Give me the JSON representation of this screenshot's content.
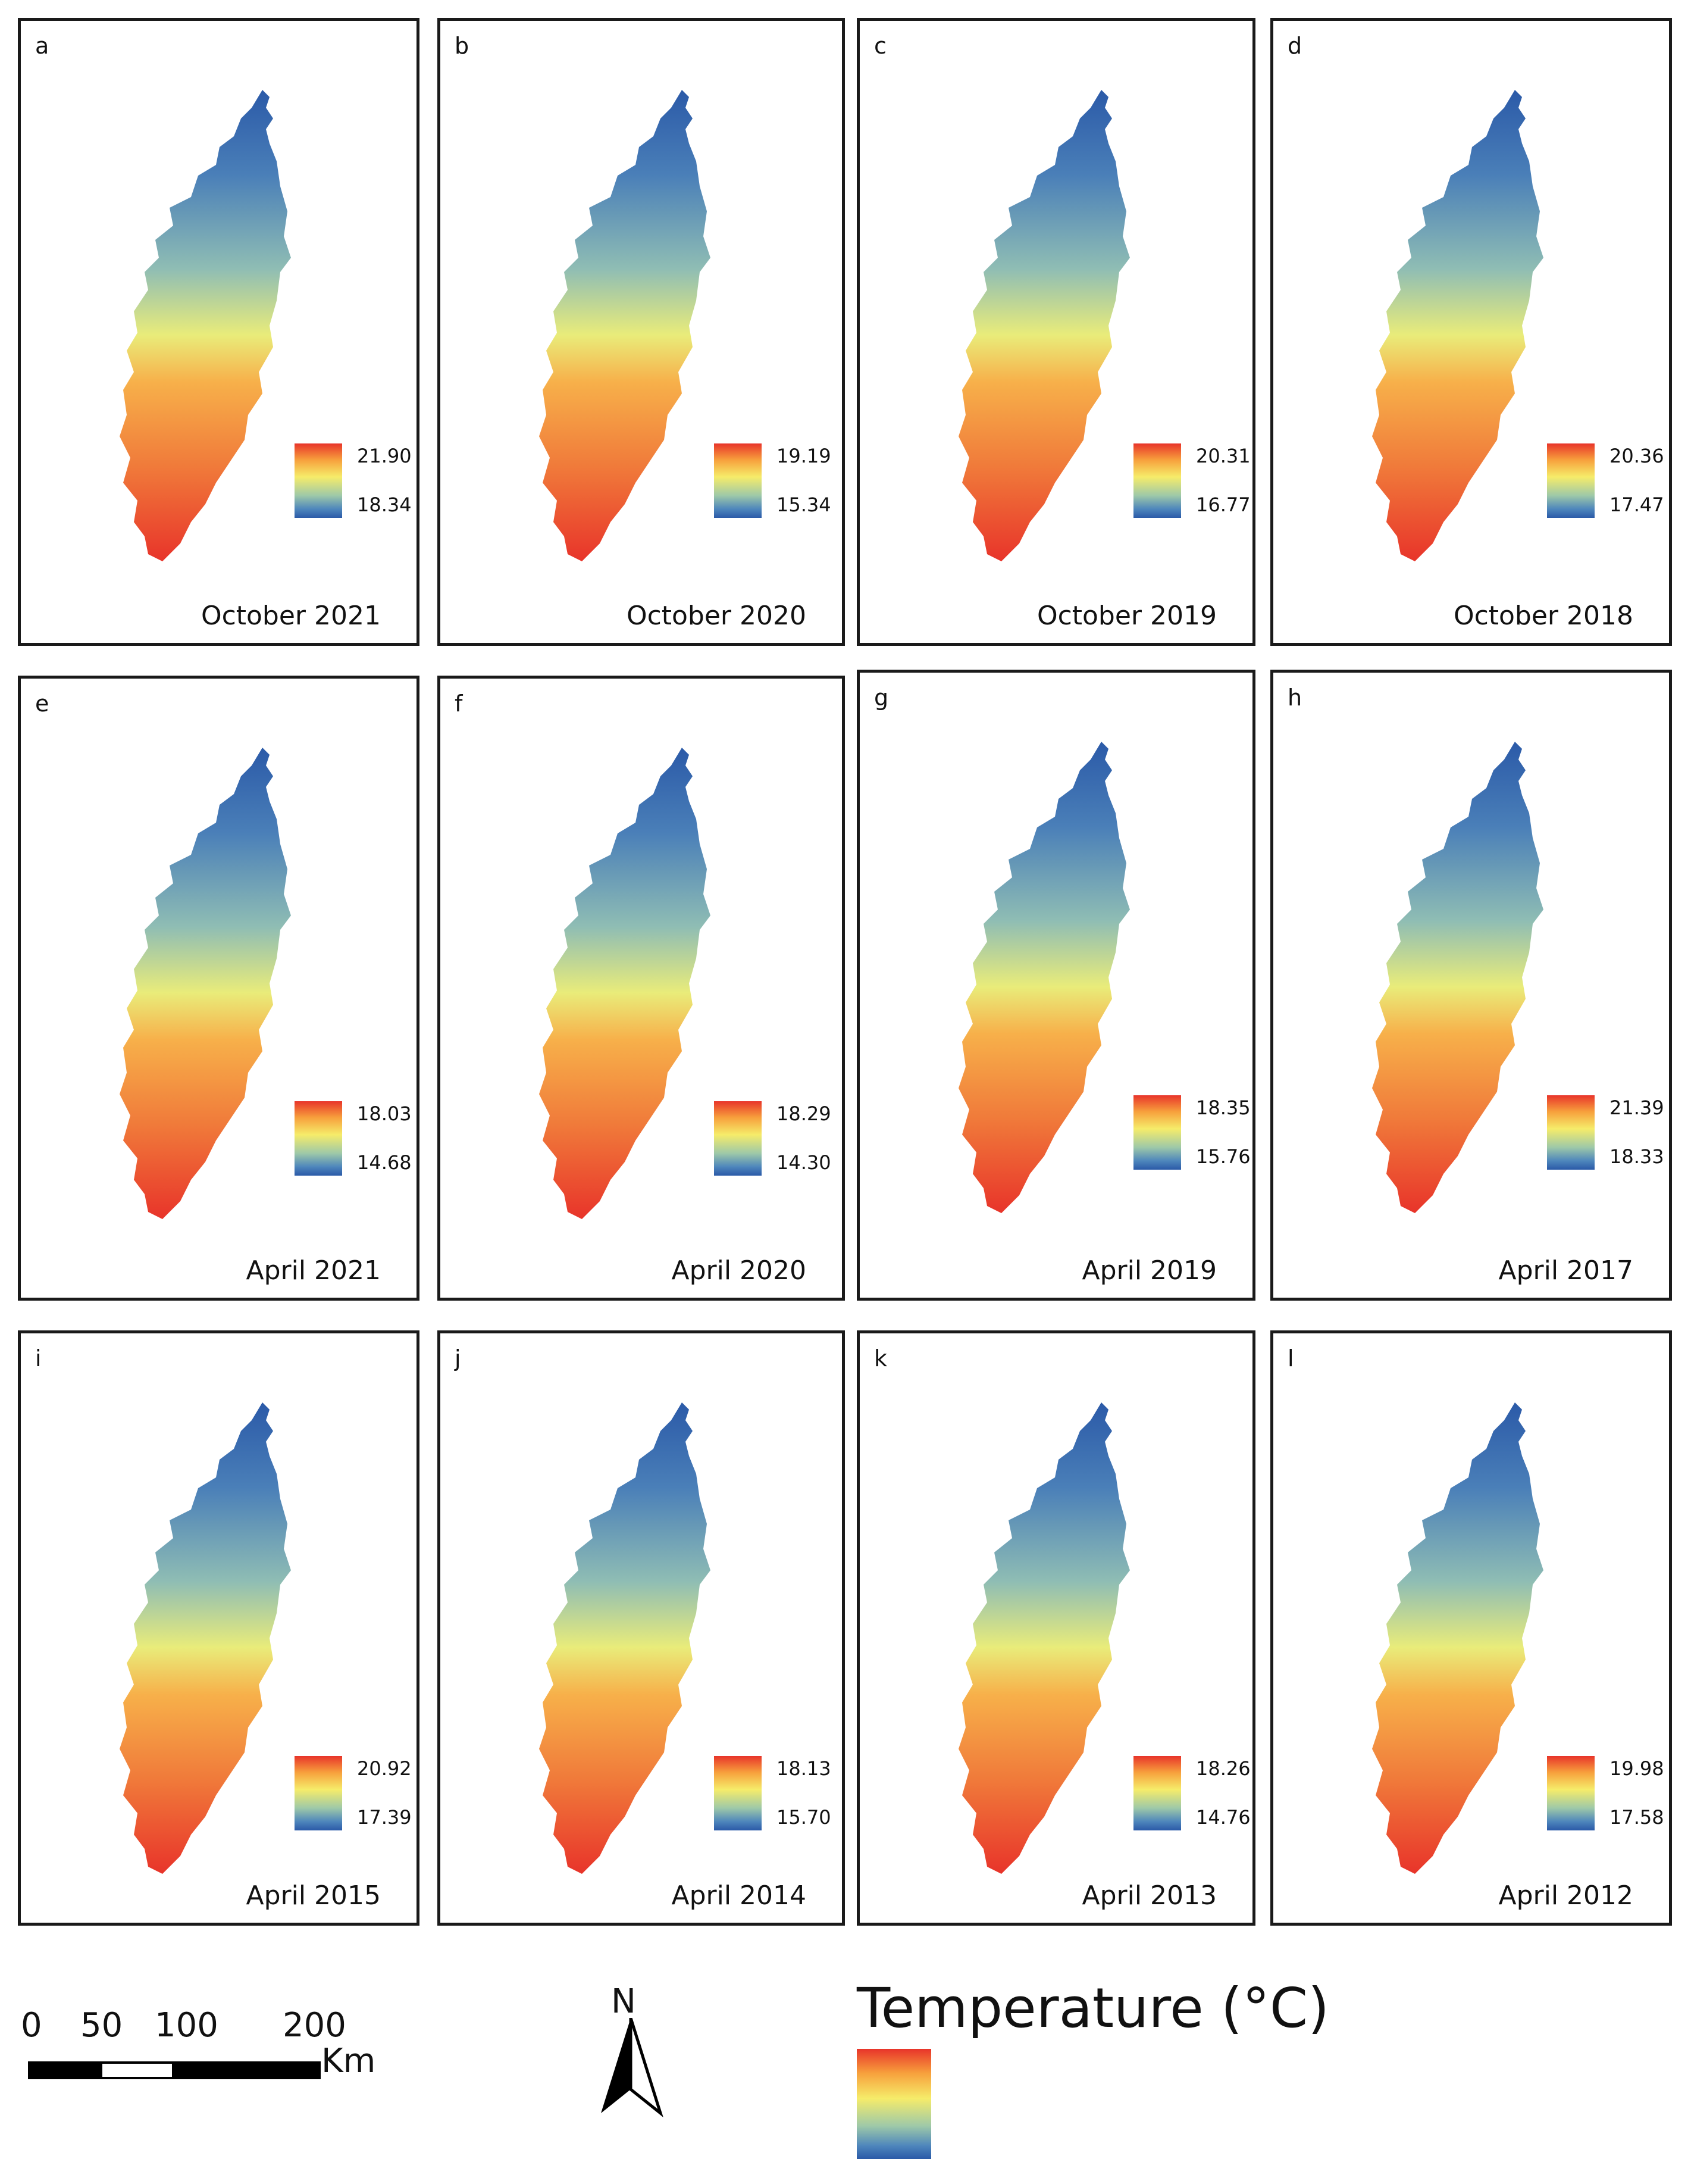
{
  "panels": [
    {
      "letter": "a",
      "caption": "October 2021",
      "max": "21.90",
      "min": "18.34"
    },
    {
      "letter": "b",
      "caption": "October 2020",
      "max": "19.19",
      "min": "15.34"
    },
    {
      "letter": "c",
      "caption": "October 2019",
      "max": "20.31",
      "min": "16.77"
    },
    {
      "letter": "d",
      "caption": "October 2018",
      "max": "20.36",
      "min": "17.47"
    },
    {
      "letter": "e",
      "caption": "April 2021",
      "max": "18.03",
      "min": "14.68"
    },
    {
      "letter": "f",
      "caption": "April 2020",
      "max": "18.29",
      "min": "14.30"
    },
    {
      "letter": "g",
      "caption": "April 2019",
      "max": "18.35",
      "min": "15.76"
    },
    {
      "letter": "h",
      "caption": "April 2017",
      "max": "21.39",
      "min": "18.33"
    },
    {
      "letter": "i",
      "caption": "April 2015",
      "max": "20.92",
      "min": "17.39"
    },
    {
      "letter": "j",
      "caption": "April 2014",
      "max": "18.13",
      "min": "15.70"
    },
    {
      "letter": "k",
      "caption": "April 2013",
      "max": "18.26",
      "min": "14.76"
    },
    {
      "letter": "l",
      "caption": "April 2012",
      "max": "19.98",
      "min": "17.58"
    }
  ],
  "scalebar": {
    "labels": [
      "0",
      "50",
      "100",
      "200"
    ],
    "unit": "Km"
  },
  "north_arrow": {
    "label": "N"
  },
  "legend": {
    "title": "Temperature (°C)"
  },
  "colors": {
    "hot": "#e8342a",
    "warm": "#f7a03c",
    "mid": "#f6ec6a",
    "cool": "#9ec9a8",
    "cold": "#2b5aa8"
  }
}
